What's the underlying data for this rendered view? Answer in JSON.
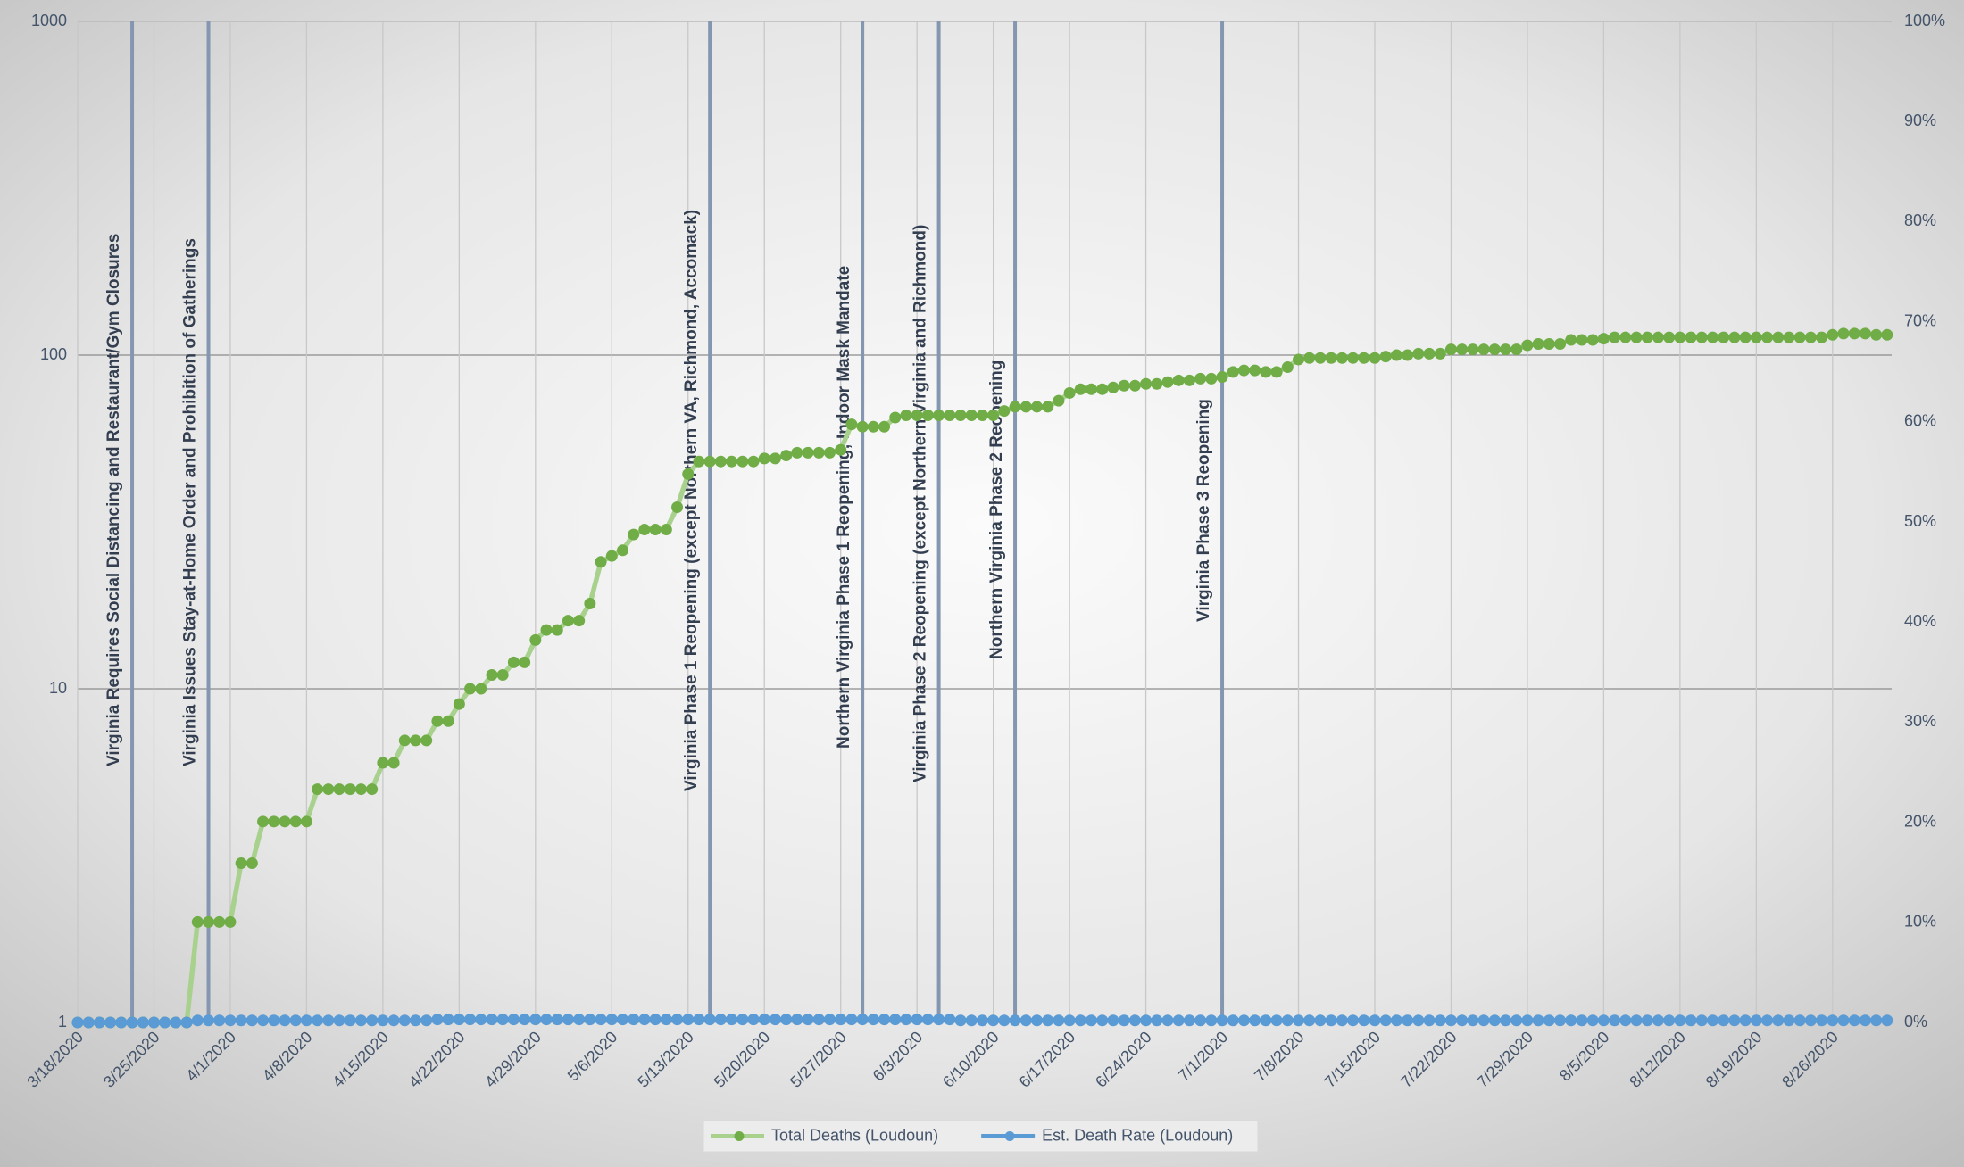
{
  "chart_data": {
    "type": "line",
    "categories": [
      "3/18/2020",
      null,
      null,
      null,
      null,
      null,
      null,
      "3/25/2020",
      null,
      null,
      null,
      null,
      null,
      null,
      "4/1/2020",
      null,
      null,
      null,
      null,
      null,
      null,
      "4/8/2020",
      null,
      null,
      null,
      null,
      null,
      null,
      "4/15/2020",
      null,
      null,
      null,
      null,
      null,
      null,
      "4/22/2020",
      null,
      null,
      null,
      null,
      null,
      null,
      "4/29/2020",
      null,
      null,
      null,
      null,
      null,
      null,
      "5/6/2020",
      null,
      null,
      null,
      null,
      null,
      null,
      "5/13/2020",
      null,
      null,
      null,
      null,
      null,
      null,
      "5/20/2020",
      null,
      null,
      null,
      null,
      null,
      null,
      "5/27/2020",
      null,
      null,
      null,
      null,
      null,
      null,
      "6/3/2020",
      null,
      null,
      null,
      null,
      null,
      null,
      "6/10/2020",
      null,
      null,
      null,
      null,
      null,
      null,
      "6/17/2020",
      null,
      null,
      null,
      null,
      null,
      null,
      "6/24/2020",
      null,
      null,
      null,
      null,
      null,
      null,
      "7/1/2020",
      null,
      null,
      null,
      null,
      null,
      null,
      "7/8/2020",
      null,
      null,
      null,
      null,
      null,
      null,
      "7/15/2020",
      null,
      null,
      null,
      null,
      null,
      null,
      "7/22/2020",
      null,
      null,
      null,
      null,
      null,
      null,
      "7/29/2020",
      null,
      null,
      null,
      null,
      null,
      null,
      "8/5/2020",
      null,
      null,
      null,
      null,
      null,
      null,
      "8/12/2020",
      null,
      null,
      null,
      null,
      null,
      null,
      "8/19/2020",
      null,
      null,
      null,
      null,
      null,
      null,
      "8/26/2020",
      null,
      null,
      null,
      null,
      null
    ],
    "series": [
      {
        "name": "Total Deaths (Loudoun)",
        "color": "#70ad47",
        "line_color": "#a9d18e",
        "axis": "y",
        "values": [
          1,
          1,
          1,
          1,
          1,
          1,
          1,
          1,
          1,
          1,
          1,
          2,
          2,
          2,
          2,
          3,
          3,
          4,
          4,
          4,
          4,
          4,
          5,
          5,
          5,
          5,
          5,
          5,
          6,
          6,
          7,
          7,
          7,
          8,
          8,
          9,
          10,
          10,
          11,
          11,
          12,
          12,
          14,
          15,
          15,
          16,
          16,
          18,
          24,
          25,
          26,
          29,
          30,
          30,
          30,
          35,
          44,
          48,
          48,
          48,
          48,
          48,
          48,
          49,
          49,
          50,
          51,
          51,
          51,
          51,
          52,
          62,
          61,
          61,
          61,
          65,
          66,
          66,
          66,
          66,
          66,
          66,
          66,
          66,
          66,
          68,
          70,
          70,
          70,
          70,
          73,
          77,
          79,
          79,
          79,
          80,
          81,
          81,
          82,
          82,
          83,
          84,
          84,
          85,
          85,
          86,
          89,
          90,
          90,
          89,
          89,
          92,
          97,
          98,
          98,
          98,
          98,
          98,
          98,
          98,
          99,
          100,
          100,
          101,
          101,
          101,
          104,
          104,
          104,
          104,
          104,
          104,
          104,
          107,
          108,
          108,
          108,
          111,
          111,
          111,
          112,
          113,
          113,
          113,
          113,
          113,
          113,
          113,
          113,
          113,
          113,
          113,
          113,
          113,
          113,
          113,
          113,
          113,
          113,
          113,
          113,
          115,
          116,
          116,
          116,
          115,
          115
        ]
      },
      {
        "name": "Est. Death Rate (Loudoun)",
        "color": "#5b9bd5",
        "line_color": "#5b9bd5",
        "axis": "y2",
        "values": [
          0,
          0,
          0,
          0,
          0,
          0,
          0,
          0,
          0,
          0,
          0,
          0.2,
          0.2,
          0.2,
          0.2,
          0.2,
          0.2,
          0.2,
          0.2,
          0.2,
          0.2,
          0.2,
          0.2,
          0.2,
          0.2,
          0.2,
          0.2,
          0.2,
          0.2,
          0.2,
          0.2,
          0.2,
          0.2,
          0.3,
          0.3,
          0.3,
          0.3,
          0.3,
          0.3,
          0.3,
          0.3,
          0.3,
          0.3,
          0.3,
          0.3,
          0.3,
          0.3,
          0.3,
          0.3,
          0.3,
          0.3,
          0.3,
          0.3,
          0.3,
          0.3,
          0.3,
          0.3,
          0.3,
          0.3,
          0.3,
          0.3,
          0.3,
          0.3,
          0.3,
          0.3,
          0.3,
          0.3,
          0.3,
          0.3,
          0.3,
          0.3,
          0.3,
          0.3,
          0.3,
          0.3,
          0.3,
          0.3,
          0.3,
          0.3,
          0.3,
          0.3,
          0.2,
          0.2,
          0.2,
          0.2,
          0.2,
          0.2,
          0.2,
          0.2,
          0.2,
          0.2,
          0.2,
          0.2,
          0.2,
          0.2,
          0.2,
          0.2,
          0.2,
          0.2,
          0.2,
          0.2,
          0.2,
          0.2,
          0.2,
          0.2,
          0.2,
          0.2,
          0.2,
          0.2,
          0.2,
          0.2,
          0.2,
          0.2,
          0.2,
          0.2,
          0.2,
          0.2,
          0.2,
          0.2,
          0.2,
          0.2,
          0.2,
          0.2,
          0.2,
          0.2,
          0.2,
          0.2,
          0.2,
          0.2,
          0.2,
          0.2,
          0.2,
          0.2,
          0.2,
          0.2,
          0.2,
          0.2,
          0.2,
          0.2,
          0.2,
          0.2,
          0.2,
          0.2,
          0.2,
          0.2,
          0.2,
          0.2,
          0.2,
          0.2,
          0.2,
          0.2,
          0.2,
          0.2,
          0.2,
          0.2,
          0.2,
          0.2,
          0.2,
          0.2,
          0.2,
          0.2,
          0.2,
          0.2,
          0.2,
          0.2,
          0.2,
          0.2
        ]
      }
    ],
    "ylim": [
      1,
      1000
    ],
    "yticks": [
      1,
      10,
      100,
      1000
    ],
    "yscale": "log",
    "y2lim": [
      0,
      100
    ],
    "y2ticks": [
      {
        "value": 0,
        "label": "0%"
      },
      {
        "value": 10,
        "label": "10%"
      },
      {
        "value": 20,
        "label": "20%"
      },
      {
        "value": 30,
        "label": "30%"
      },
      {
        "value": 40,
        "label": "40%"
      },
      {
        "value": 50,
        "label": "50%"
      },
      {
        "value": 60,
        "label": "60%"
      },
      {
        "value": 70,
        "label": "70%"
      },
      {
        "value": 80,
        "label": "80%"
      },
      {
        "value": 90,
        "label": "90%"
      },
      {
        "value": 100,
        "label": "100%"
      }
    ],
    "grid": true,
    "legend": "bottom",
    "annotations": [
      "Virginia Requires Social Distancing and Restaurant/Gym Closures",
      "Virginia Issues Stay-at-Home Order and Prohibition of Gatherings",
      "Virginia Phase 1 Reopening (except Northern VA, Richmond, Accomack)",
      "Northern Virginia Phase 1 Reopening; Indoor Mask Mandate",
      "Virginia Phase 2 Reopening (except Northern Virginia and Richmond)",
      "Northern Virginia Phase 2 Reopening",
      "Virginia Phase 3 Reopening"
    ]
  }
}
